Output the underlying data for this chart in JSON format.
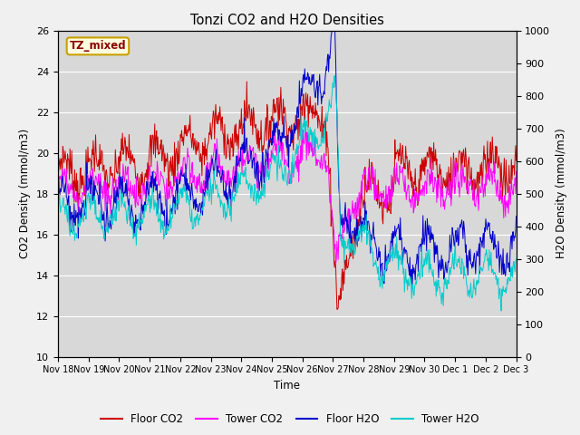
{
  "title": "Tonzi CO2 and H2O Densities",
  "xlabel": "Time",
  "ylabel_left": "CO2 Density (mmol/m3)",
  "ylabel_right": "H2O Density (mmol/m3)",
  "annotation": "TZ_mixed",
  "ylim_left": [
    10,
    26
  ],
  "ylim_right": [
    0,
    1000
  ],
  "yticks_left": [
    10,
    12,
    14,
    16,
    18,
    20,
    22,
    24,
    26
  ],
  "yticks_right": [
    0,
    100,
    200,
    300,
    400,
    500,
    600,
    700,
    800,
    900,
    1000
  ],
  "x_tick_labels": [
    "Nov 18",
    "Nov 19",
    "Nov 20",
    "Nov 21",
    "Nov 22",
    "Nov 23",
    "Nov 24",
    "Nov 25",
    "Nov 26",
    "Nov 27",
    "Nov 28",
    "Nov 29",
    "Nov 30",
    "Dec 1",
    "Dec 2",
    "Dec 3"
  ],
  "colors": {
    "floor_co2": "#cc0000",
    "tower_co2": "#ff00ff",
    "floor_h2o": "#0000cc",
    "tower_h2o": "#00cccc"
  },
  "legend_labels": [
    "Floor CO2",
    "Tower CO2",
    "Floor H2O",
    "Tower H2O"
  ],
  "plot_bg": "#d8d8d8",
  "fig_bg": "#f0f0f0",
  "grid_color": "#ffffff"
}
